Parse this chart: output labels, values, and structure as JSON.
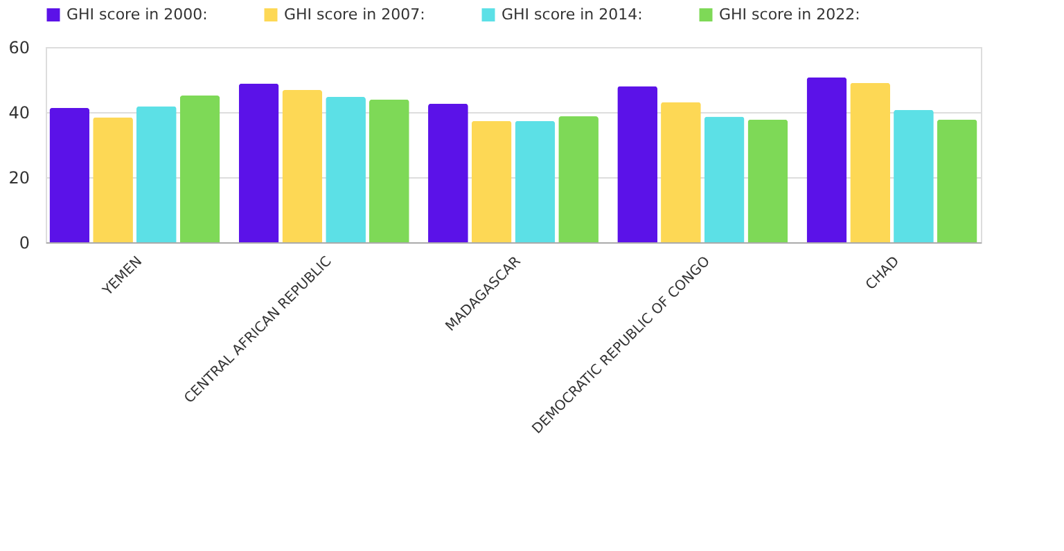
{
  "chart_data": {
    "type": "bar",
    "categories": [
      "YEMEN",
      "CENTRAL AFRICAN REPUBLIC",
      "MADAGASCAR",
      "DEMOCRATIC REPUBLIC OF CONGO",
      "CHAD"
    ],
    "series": [
      {
        "name": "GHI score in 2000:",
        "color": "#5b12e8",
        "values": [
          41.3,
          48.8,
          42.6,
          48.0,
          50.7
        ]
      },
      {
        "name": "GHI score in 2007:",
        "color": "#fdd855",
        "values": [
          38.4,
          46.8,
          37.3,
          43.1,
          49.0
        ]
      },
      {
        "name": "GHI score in 2014:",
        "color": "#5ce0e6",
        "values": [
          41.8,
          44.7,
          37.3,
          38.6,
          40.7
        ]
      },
      {
        "name": "GHI score in 2022:",
        "color": "#7ed957",
        "values": [
          45.1,
          43.9,
          38.7,
          37.7,
          37.7
        ]
      }
    ],
    "ylim": [
      0,
      60
    ],
    "yticks": [
      0,
      20,
      40,
      60
    ],
    "grid": "y",
    "legend": "top"
  }
}
